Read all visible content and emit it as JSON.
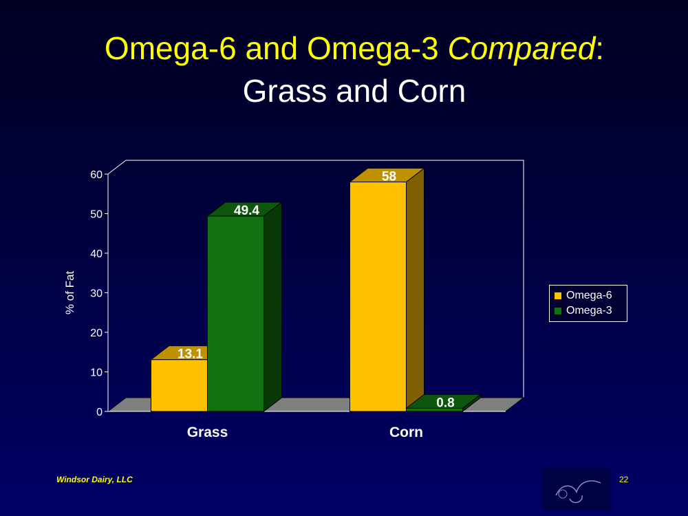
{
  "slide": {
    "title_main": "Omega-6 and Omega-3 ",
    "title_em": "Compared",
    "title_colon": ":",
    "subtitle": "Grass and Corn",
    "footer_left": "Windsor Dairy, LLC",
    "page_number": "22"
  },
  "colors": {
    "omega6": "#ffc000",
    "omega3": "#127212",
    "title": "#ffff00",
    "floor": "#7f7f7f"
  },
  "chart_data": {
    "type": "bar",
    "categories": [
      "Grass",
      "Corn"
    ],
    "series": [
      {
        "name": "Omega-6",
        "values": [
          13.1,
          58
        ]
      },
      {
        "name": "Omega-3",
        "values": [
          49.4,
          0.8
        ]
      }
    ],
    "data_labels": [
      [
        "13.1",
        "58"
      ],
      [
        "49.4",
        "0.8"
      ]
    ],
    "ylabel": "% of Fat",
    "ylim": [
      0,
      60
    ],
    "yticks": [
      0,
      10,
      20,
      30,
      40,
      50,
      60
    ],
    "legend_position": "right",
    "grid": false,
    "style": "3d"
  }
}
